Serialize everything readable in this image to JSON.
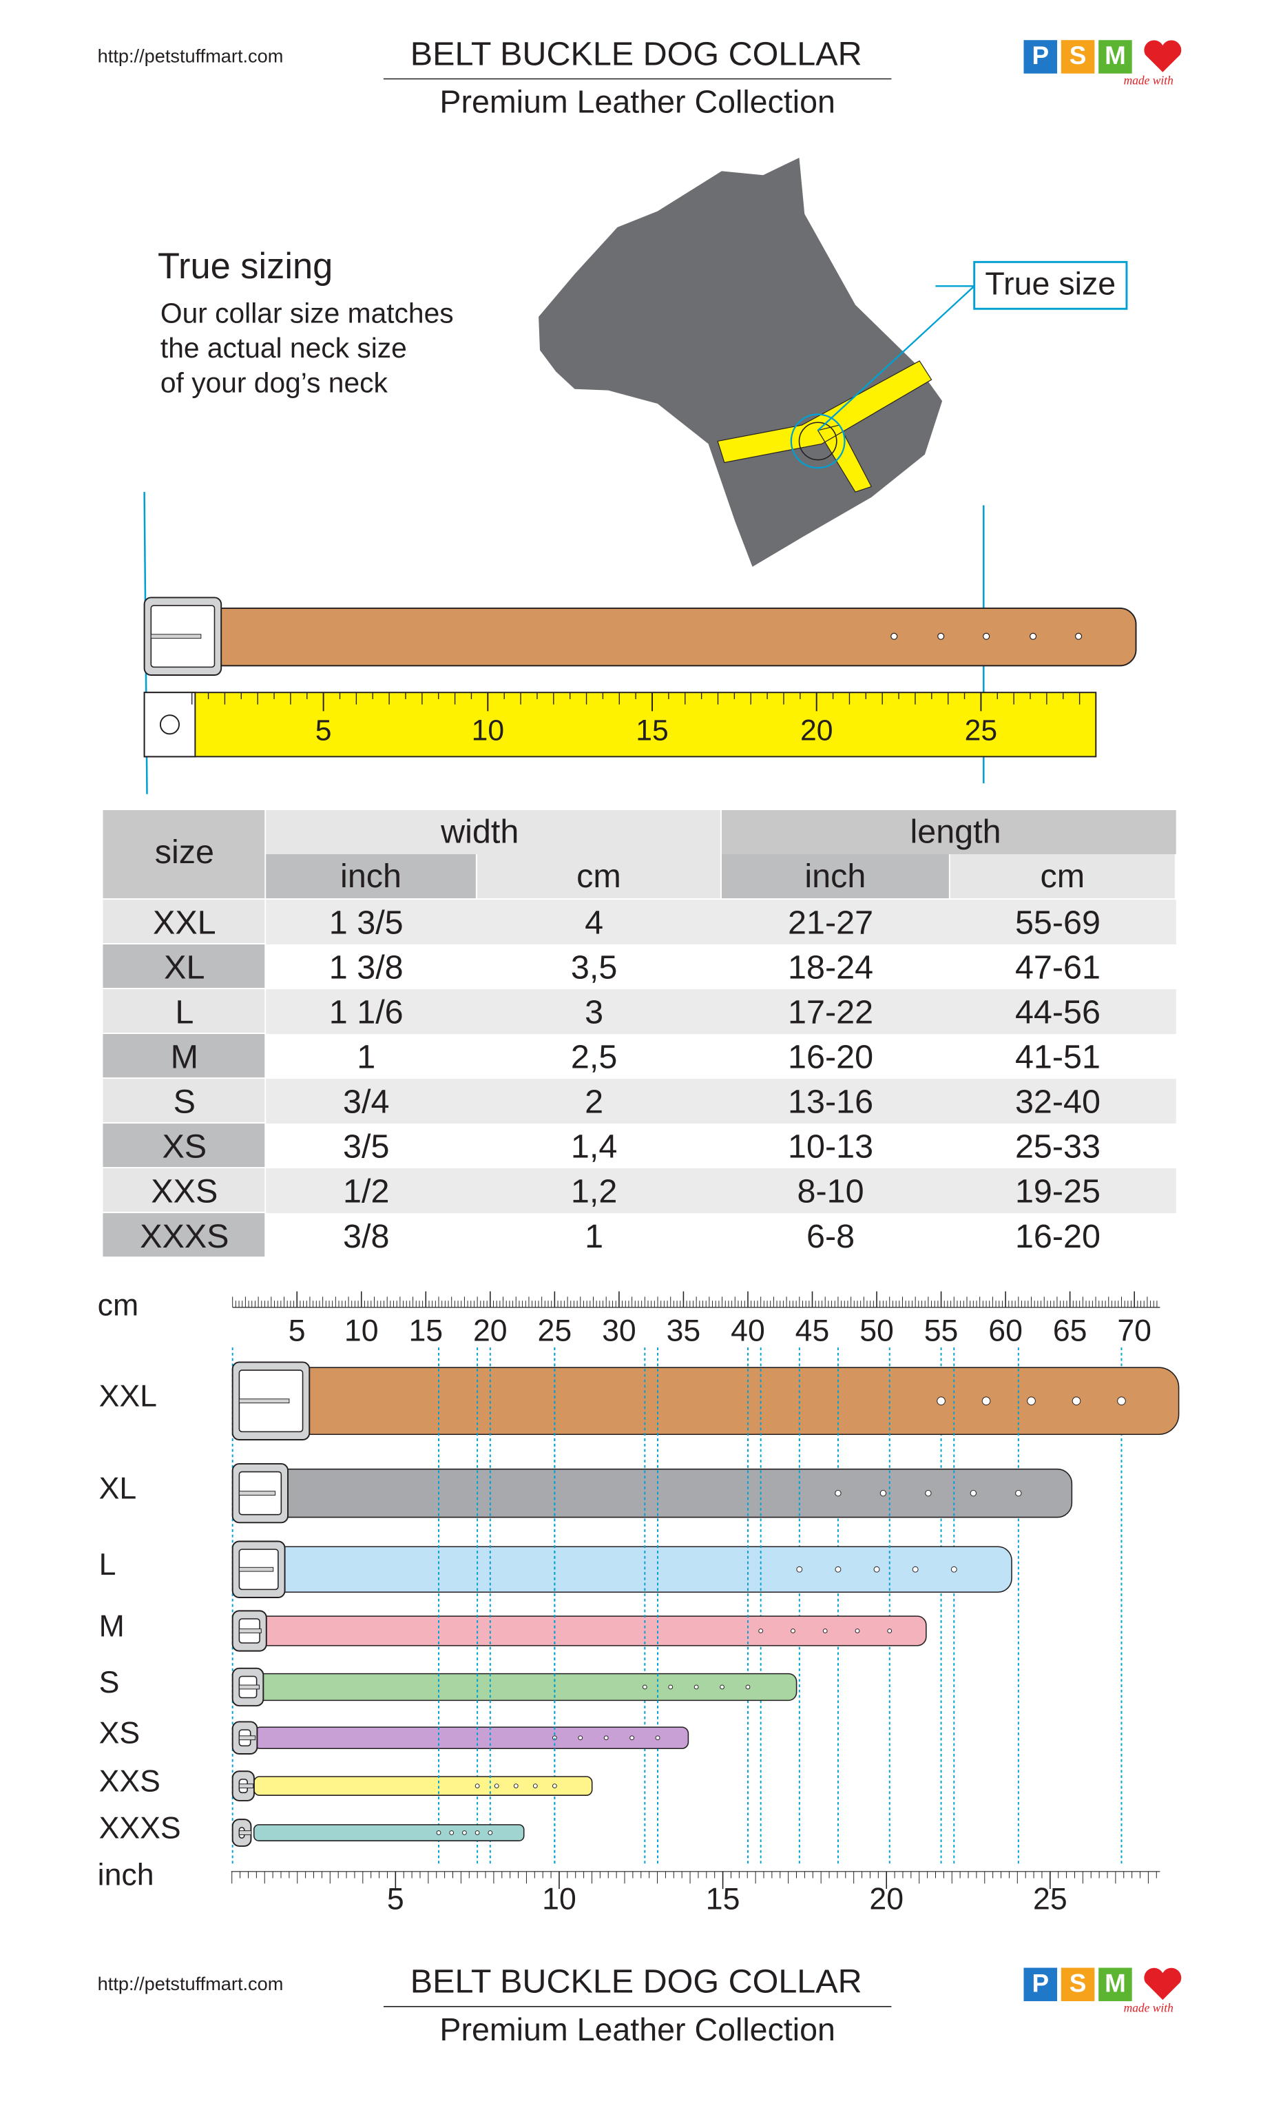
{
  "header": {
    "url": "http://petstuffmart.com",
    "title": "BELT BUCKLE DOG COLLAR",
    "subtitle": "Premium Leather Collection",
    "logo": [
      "P",
      "S",
      "M"
    ],
    "tagline": "made with"
  },
  "intro": {
    "heading": "True sizing",
    "lines": [
      "Our collar size matches",
      "the actual neck size",
      "of your dog’s neck"
    ],
    "callout": "True size"
  },
  "tape": {
    "ticks": [
      5,
      10,
      15,
      20,
      25
    ]
  },
  "table": {
    "headers": {
      "size": "size",
      "width": "width",
      "length": "length",
      "units": [
        "inch",
        "cm",
        "inch",
        "cm"
      ]
    },
    "rows": [
      [
        "XXL",
        "1 3/5",
        "4",
        "21-27",
        "55-69"
      ],
      [
        "XL",
        "1 3/8",
        "3,5",
        "18-24",
        "47-61"
      ],
      [
        "L",
        "1 1/6",
        "3",
        "17-22",
        "44-56"
      ],
      [
        "M",
        "1",
        "2,5",
        "16-20",
        "41-51"
      ],
      [
        "S",
        "3/4",
        "2",
        "13-16",
        "32-40"
      ],
      [
        "XS",
        "3/5",
        "1,4",
        "10-13",
        "25-33"
      ],
      [
        "XXS",
        "1/2",
        "1,2",
        "8-10",
        "19-25"
      ],
      [
        "XXXS",
        "3/8",
        "1",
        "6-8",
        "16-20"
      ]
    ]
  },
  "scale": {
    "cm_label": "cm",
    "cm_ticks": [
      5,
      10,
      15,
      20,
      25,
      30,
      35,
      40,
      45,
      50,
      55,
      60,
      65,
      70
    ],
    "inch_label": "inch",
    "inch_ticks": [
      5,
      10,
      15,
      20,
      25
    ]
  }
}
